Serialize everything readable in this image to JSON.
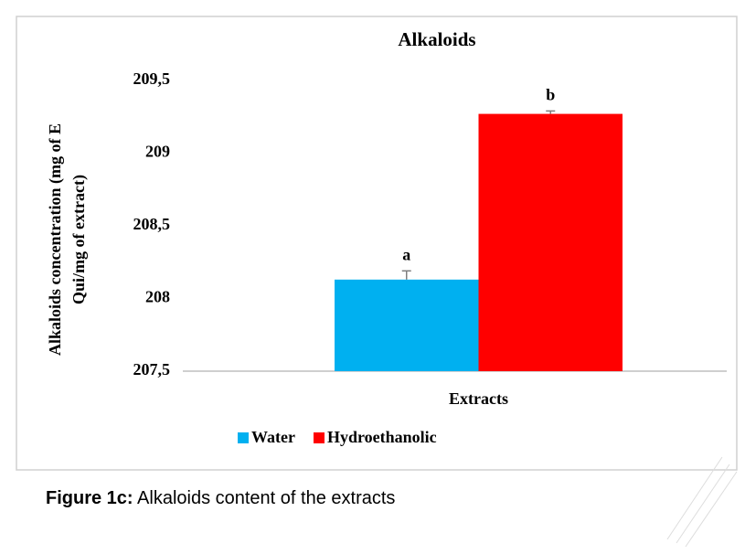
{
  "chart_data": {
    "type": "bar",
    "title": "Alkaloids",
    "ylabel": [
      "Alkaloids concentration (mg of E",
      "Qui/mg of extract)"
    ],
    "categories": [
      "Extracts"
    ],
    "series": [
      {
        "name": "Water",
        "color": "#00b0f0",
        "values": [
          208.13
        ],
        "errors": [
          0.06
        ],
        "annotation": "a"
      },
      {
        "name": "Hydroethanolic",
        "color": "#ff0000",
        "values": [
          209.27
        ],
        "errors": [
          0.02
        ],
        "annotation": "b"
      }
    ],
    "ylim": [
      207.5,
      209.5
    ],
    "yticks": [
      {
        "value": 207.5,
        "label": "207,5"
      },
      {
        "value": 208,
        "label": "208"
      },
      {
        "value": 208.5,
        "label": "208,5"
      },
      {
        "value": 209,
        "label": "209"
      },
      {
        "value": 209.5,
        "label": "209,5"
      }
    ],
    "legend": "bottom"
  },
  "caption": {
    "label": "Figure 1c:",
    "text": " Alkaloids content of the extracts"
  }
}
